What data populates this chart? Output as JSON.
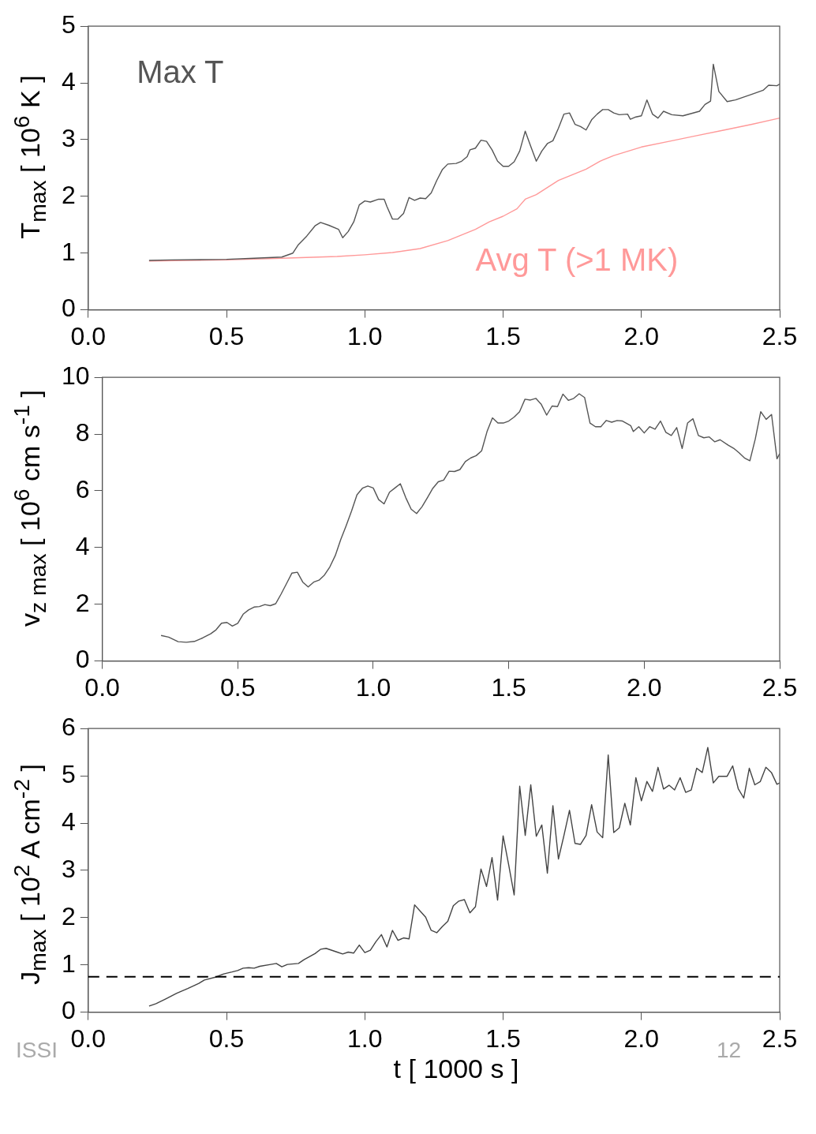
{
  "chart_data": [
    {
      "type": "line",
      "ylabel": "T$_{max}$ [ 10$^{6}$ K ]",
      "xlim": [
        0,
        2.5
      ],
      "ylim": [
        0,
        5
      ],
      "xticks": [
        {
          "value": 0,
          "label": "0.0"
        },
        {
          "value": 0.5,
          "label": "0.5"
        },
        {
          "value": 1,
          "label": "1.0"
        },
        {
          "value": 1.5,
          "label": "1.5"
        },
        {
          "value": 2,
          "label": "2.0"
        },
        {
          "value": 2.5,
          "label": "2.5"
        }
      ],
      "yticks": [
        0,
        1,
        2,
        3,
        4,
        5
      ],
      "grid": false,
      "legend": false,
      "series": [
        {
          "name": "Max T",
          "color": "#555555",
          "x": [
            0.22,
            0.3,
            0.5,
            0.6,
            0.7,
            0.74,
            0.76,
            0.79,
            0.82,
            0.84,
            0.87,
            0.905,
            0.92,
            0.94,
            0.96,
            0.98,
            1.0,
            1.02,
            1.05,
            1.07,
            1.08,
            1.1,
            1.12,
            1.14,
            1.16,
            1.18,
            1.2,
            1.22,
            1.24,
            1.26,
            1.28,
            1.3,
            1.33,
            1.35,
            1.37,
            1.38,
            1.4,
            1.42,
            1.44,
            1.46,
            1.48,
            1.5,
            1.52,
            1.54,
            1.56,
            1.58,
            1.6,
            1.62,
            1.64,
            1.66,
            1.68,
            1.7,
            1.72,
            1.74,
            1.76,
            1.78,
            1.8,
            1.82,
            1.84,
            1.86,
            1.88,
            1.9,
            1.92,
            1.95,
            1.96,
            1.98,
            2.0,
            2.02,
            2.04,
            2.06,
            2.08,
            2.11,
            2.15,
            2.21,
            2.23,
            2.25,
            2.26,
            2.28,
            2.31,
            2.34,
            2.4,
            2.44,
            2.46,
            2.49,
            2.5
          ],
          "values": [
            0.87,
            0.88,
            0.89,
            0.91,
            0.93,
            1.0,
            1.15,
            1.3,
            1.48,
            1.54,
            1.49,
            1.42,
            1.27,
            1.38,
            1.55,
            1.85,
            1.92,
            1.9,
            1.95,
            1.95,
            1.82,
            1.6,
            1.6,
            1.7,
            1.98,
            1.93,
            1.97,
            1.96,
            2.06,
            2.28,
            2.47,
            2.57,
            2.58,
            2.62,
            2.7,
            2.82,
            2.85,
            2.99,
            2.97,
            2.82,
            2.62,
            2.53,
            2.53,
            2.61,
            2.8,
            3.15,
            2.88,
            2.62,
            2.8,
            2.93,
            2.98,
            3.2,
            3.45,
            3.47,
            3.27,
            3.23,
            3.17,
            3.35,
            3.45,
            3.53,
            3.53,
            3.47,
            3.44,
            3.45,
            3.36,
            3.4,
            3.42,
            3.7,
            3.45,
            3.38,
            3.5,
            3.44,
            3.42,
            3.5,
            3.62,
            3.68,
            4.33,
            3.85,
            3.67,
            3.7,
            3.8,
            3.87,
            3.96,
            3.95,
            3.98
          ]
        },
        {
          "name": "Avg T (>1 MK)",
          "color": "#ff9999",
          "x": [
            0.22,
            0.5,
            0.7,
            0.9,
            1.0,
            1.1,
            1.2,
            1.3,
            1.4,
            1.45,
            1.5,
            1.55,
            1.58,
            1.62,
            1.7,
            1.8,
            1.85,
            1.9,
            2.0,
            2.1,
            2.2,
            2.3,
            2.4,
            2.5
          ],
          "values": [
            0.86,
            0.88,
            0.91,
            0.94,
            0.97,
            1.01,
            1.08,
            1.22,
            1.42,
            1.55,
            1.65,
            1.78,
            1.95,
            2.03,
            2.28,
            2.48,
            2.62,
            2.72,
            2.87,
            2.97,
            3.07,
            3.17,
            3.27,
            3.38
          ]
        }
      ]
    },
    {
      "type": "line",
      "ylabel": "v$_{z max}$ [ 10$^{6}$ cm s$^{-1}$ ]",
      "xlim": [
        0,
        2.5
      ],
      "ylim": [
        0,
        10
      ],
      "xticks": [
        {
          "value": 0,
          "label": "0.0"
        },
        {
          "value": 0.5,
          "label": "0.5"
        },
        {
          "value": 1,
          "label": "1.0"
        },
        {
          "value": 1.5,
          "label": "1.5"
        },
        {
          "value": 2,
          "label": "2.0"
        },
        {
          "value": 2.5,
          "label": "2.5"
        }
      ],
      "yticks": [
        0,
        2,
        4,
        6,
        8,
        10
      ],
      "grid": false,
      "legend": false,
      "series": [
        {
          "color": "#555555",
          "x": [
            0.217,
            0.245,
            0.28,
            0.31,
            0.34,
            0.37,
            0.4,
            0.42,
            0.44,
            0.46,
            0.48,
            0.5,
            0.52,
            0.54,
            0.56,
            0.58,
            0.6,
            0.62,
            0.64,
            0.66,
            0.68,
            0.7,
            0.72,
            0.74,
            0.76,
            0.78,
            0.8,
            0.82,
            0.84,
            0.86,
            0.88,
            0.9,
            0.92,
            0.94,
            0.96,
            0.98,
            1.0,
            1.02,
            1.04,
            1.06,
            1.08,
            1.1,
            1.12,
            1.14,
            1.16,
            1.18,
            1.2,
            1.22,
            1.24,
            1.26,
            1.28,
            1.3,
            1.32,
            1.34,
            1.36,
            1.38,
            1.4,
            1.42,
            1.44,
            1.46,
            1.48,
            1.5,
            1.52,
            1.54,
            1.56,
            1.58,
            1.6,
            1.62,
            1.64,
            1.66,
            1.68,
            1.7,
            1.72,
            1.74,
            1.76,
            1.78,
            1.8,
            1.82,
            1.84,
            1.86,
            1.88,
            1.9,
            1.92,
            1.95,
            1.96,
            1.98,
            2.0,
            2.02,
            2.04,
            2.06,
            2.08,
            2.1,
            2.12,
            2.14,
            2.16,
            2.18,
            2.2,
            2.22,
            2.24,
            2.26,
            2.28,
            2.31,
            2.33,
            2.35,
            2.37,
            2.39,
            2.41,
            2.43,
            2.45,
            2.47,
            2.49,
            2.5
          ],
          "values": [
            0.9,
            0.84,
            0.68,
            0.66,
            0.69,
            0.81,
            0.96,
            1.1,
            1.33,
            1.36,
            1.23,
            1.33,
            1.65,
            1.8,
            1.9,
            1.92,
            1.99,
            1.95,
            2.02,
            2.36,
            2.73,
            3.1,
            3.13,
            2.78,
            2.61,
            2.78,
            2.85,
            3.03,
            3.32,
            3.72,
            4.28,
            4.77,
            5.29,
            5.86,
            6.09,
            6.17,
            6.1,
            5.69,
            5.54,
            5.95,
            6.1,
            6.25,
            5.76,
            5.35,
            5.2,
            5.44,
            5.76,
            6.09,
            6.32,
            6.38,
            6.69,
            6.68,
            6.75,
            7.03,
            7.16,
            7.24,
            7.41,
            8.09,
            8.57,
            8.39,
            8.39,
            8.46,
            8.6,
            8.79,
            9.23,
            9.2,
            9.26,
            9.05,
            8.67,
            8.99,
            8.97,
            9.41,
            9.19,
            9.26,
            9.42,
            9.29,
            8.39,
            8.26,
            8.26,
            8.48,
            8.42,
            8.48,
            8.46,
            8.3,
            8.09,
            8.26,
            8.04,
            8.26,
            8.17,
            8.46,
            8.06,
            7.95,
            8.23,
            7.49,
            8.39,
            8.54,
            7.95,
            7.87,
            7.9,
            7.73,
            7.8,
            7.61,
            7.5,
            7.34,
            7.16,
            7.06,
            7.83,
            8.79,
            8.52,
            8.69,
            7.13,
            7.31
          ]
        }
      ]
    },
    {
      "type": "line",
      "ylabel": "J$_{max}$ [ 10$^{2}$ A cm$^{-2}$ ]",
      "xlabel": "t [ 1000 s ]",
      "xlim": [
        0,
        2.5
      ],
      "ylim": [
        0,
        6
      ],
      "xticks": [
        {
          "value": 0,
          "label": "0.0"
        },
        {
          "value": 0.5,
          "label": "0.5"
        },
        {
          "value": 1,
          "label": "1.0"
        },
        {
          "value": 1.5,
          "label": "1.5"
        },
        {
          "value": 2,
          "label": "2.0"
        },
        {
          "value": 2.5,
          "label": "2.5"
        }
      ],
      "yticks": [
        0,
        1,
        2,
        3,
        4,
        5,
        6
      ],
      "grid": false,
      "legend": false,
      "ref_lines": [
        {
          "axis": "y",
          "value": 0.75,
          "color": "#000000",
          "line_style": "dashed"
        }
      ],
      "annotations": [
        "ISSI",
        "12"
      ],
      "series": [
        {
          "color": "#444444",
          "x": [
            0.22,
            0.245,
            0.28,
            0.32,
            0.36,
            0.4,
            0.42,
            0.46,
            0.49,
            0.52,
            0.54,
            0.56,
            0.58,
            0.6,
            0.62,
            0.66,
            0.68,
            0.7,
            0.72,
            0.76,
            0.78,
            0.82,
            0.84,
            0.86,
            0.9,
            0.92,
            0.94,
            0.96,
            0.98,
            1.0,
            1.02,
            1.04,
            1.06,
            1.08,
            1.1,
            1.12,
            1.14,
            1.16,
            1.18,
            1.2,
            1.22,
            1.24,
            1.26,
            1.28,
            1.3,
            1.32,
            1.34,
            1.36,
            1.38,
            1.4,
            1.42,
            1.44,
            1.46,
            1.48,
            1.5,
            1.52,
            1.54,
            1.56,
            1.58,
            1.6,
            1.62,
            1.64,
            1.66,
            1.68,
            1.7,
            1.72,
            1.74,
            1.76,
            1.78,
            1.8,
            1.82,
            1.84,
            1.86,
            1.88,
            1.9,
            1.92,
            1.94,
            1.96,
            1.98,
            2.0,
            2.02,
            2.04,
            2.06,
            2.08,
            2.1,
            2.12,
            2.14,
            2.16,
            2.18,
            2.2,
            2.22,
            2.24,
            2.26,
            2.28,
            2.31,
            2.33,
            2.35,
            2.37,
            2.39,
            2.41,
            2.43,
            2.45,
            2.47,
            2.49,
            2.5
          ],
          "values": [
            0.13,
            0.18,
            0.28,
            0.4,
            0.5,
            0.61,
            0.68,
            0.74,
            0.81,
            0.85,
            0.88,
            0.93,
            0.94,
            0.93,
            0.97,
            1.01,
            1.03,
            0.96,
            1.01,
            1.03,
            1.11,
            1.24,
            1.33,
            1.35,
            1.27,
            1.23,
            1.27,
            1.25,
            1.42,
            1.26,
            1.31,
            1.49,
            1.64,
            1.38,
            1.73,
            1.52,
            1.57,
            1.55,
            2.27,
            2.14,
            2.01,
            1.73,
            1.68,
            1.81,
            1.92,
            2.25,
            2.35,
            2.38,
            2.1,
            2.23,
            3.03,
            2.66,
            3.27,
            2.37,
            3.73,
            3.12,
            2.48,
            4.78,
            3.74,
            4.81,
            3.72,
            3.96,
            2.94,
            4.37,
            3.24,
            3.74,
            4.27,
            3.57,
            3.55,
            3.74,
            4.39,
            3.81,
            3.69,
            5.44,
            3.8,
            3.9,
            4.42,
            3.96,
            4.96,
            4.47,
            4.88,
            4.67,
            5.18,
            4.72,
            4.8,
            4.7,
            4.96,
            4.65,
            4.7,
            5.16,
            5.07,
            5.6,
            4.85,
            4.99,
            4.99,
            5.21,
            4.73,
            4.53,
            5.16,
            4.81,
            4.88,
            5.18,
            5.07,
            4.82,
            4.85
          ]
        }
      ]
    }
  ]
}
